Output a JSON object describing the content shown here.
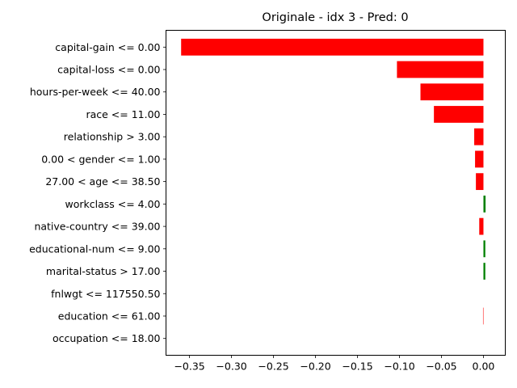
{
  "chart_data": {
    "type": "bar",
    "orientation": "horizontal",
    "title": "Originale - idx 3 - Pred: 0",
    "xlabel": "",
    "ylabel": "",
    "xlim": [
      -0.378,
      0.026
    ],
    "xticks": [
      -0.35,
      -0.3,
      -0.25,
      -0.2,
      -0.15,
      -0.1,
      -0.05,
      0.0
    ],
    "xtick_labels": [
      "−0.35",
      "−0.30",
      "−0.25",
      "−0.20",
      "−0.15",
      "−0.10",
      "−0.05",
      "0.00"
    ],
    "grid": false,
    "categories": [
      "capital-gain <= 0.00",
      "capital-loss <= 0.00",
      "hours-per-week <= 40.00",
      "race <= 11.00",
      "relationship > 3.00",
      "0.00 < gender <= 1.00",
      "27.00 < age <= 38.50",
      "workclass <= 4.00",
      "native-country <= 39.00",
      "educational-num <= 9.00",
      "marital-status > 17.00",
      "fnlwgt <= 117550.50",
      "education <= 61.00",
      "occupation <= 18.00"
    ],
    "values": [
      -0.36,
      -0.103,
      -0.075,
      -0.059,
      -0.011,
      -0.01,
      -0.009,
      0.0025,
      -0.005,
      0.0022,
      0.0022,
      0.0,
      -0.0005,
      0.0
    ],
    "colors": {
      "negative": "#ff0000",
      "positive": "#008000"
    }
  }
}
